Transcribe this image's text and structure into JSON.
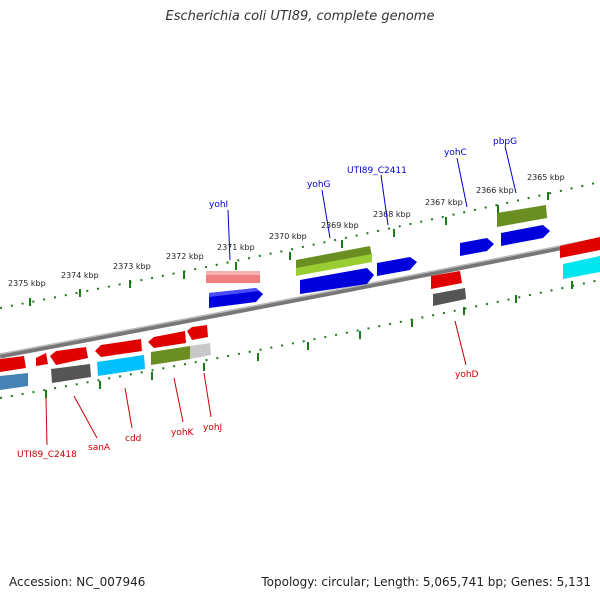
{
  "title": "Escherichia coli UTI89, complete genome",
  "footer": {
    "accession": "Accession: NC_007946",
    "summary": "Topology: circular; Length: 5,065,741 bp; Genes: 5,131"
  },
  "colors": {
    "backbone": "#888888",
    "ticks": "#1a7a1a",
    "plus_label": "#0000cc",
    "minus_label": "#cc0000"
  },
  "kbp_labels": [
    "2375 kbp",
    "2374 kbp",
    "2373 kbp",
    "2372 kbp",
    "2371 kbp",
    "2370 kbp",
    "2369 kbp",
    "2368 kbp",
    "2367 kbp",
    "2366 kbp",
    "2365 kbp"
  ],
  "plus_genes": [
    "yohI",
    "yohG",
    "UTI89_C2411",
    "yohC",
    "pbpG"
  ],
  "minus_genes": [
    "UTI89_C2418",
    "sanA",
    "cdd",
    "yohK",
    "yohJ",
    "yohD"
  ]
}
